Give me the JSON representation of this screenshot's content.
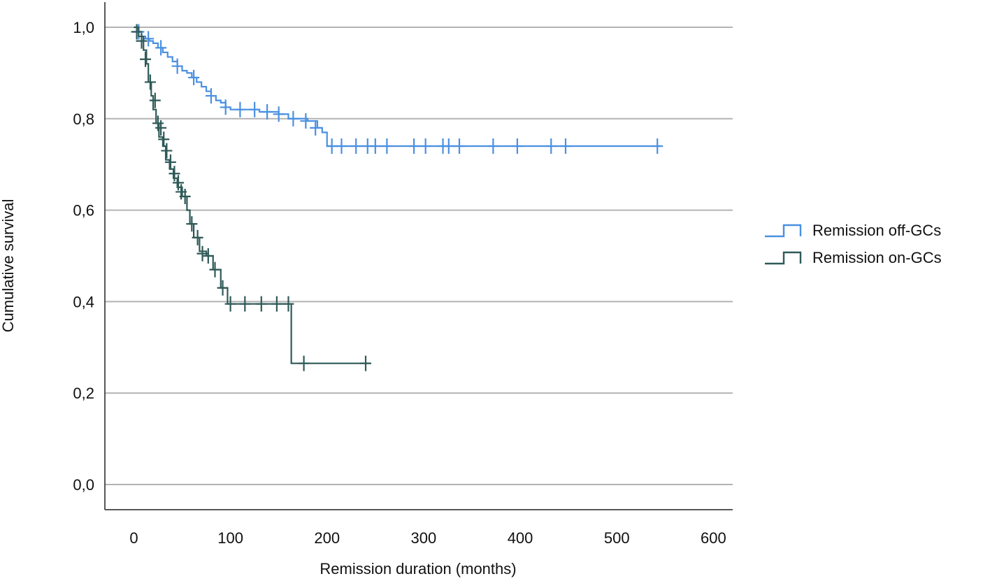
{
  "chart_data": {
    "type": "line",
    "subtype": "kaplan-meier",
    "xlabel": "Remission duration (months)",
    "ylabel": "Cumulative survival",
    "xlim": [
      -30,
      620
    ],
    "ylim": [
      -0.055,
      1.055
    ],
    "x_ticks": [
      0,
      100,
      200,
      300,
      400,
      500,
      600
    ],
    "x_tick_labels": [
      "0",
      "100",
      "200",
      "300",
      "400",
      "500",
      "600"
    ],
    "y_ticks": [
      0.0,
      0.2,
      0.4,
      0.6,
      0.8,
      1.0
    ],
    "y_tick_labels": [
      "0,0",
      "0,2",
      "0,4",
      "0,6",
      "0,8",
      "1,0"
    ],
    "grid": "horizontal",
    "legend_position": "right",
    "series": [
      {
        "name": "Remission off-GCs",
        "color": "#4a90e2",
        "steps": [
          [
            0,
            1.0
          ],
          [
            4,
            0.99
          ],
          [
            8,
            0.98
          ],
          [
            12,
            0.975
          ],
          [
            16,
            0.97
          ],
          [
            20,
            0.965
          ],
          [
            25,
            0.955
          ],
          [
            30,
            0.945
          ],
          [
            35,
            0.935
          ],
          [
            40,
            0.925
          ],
          [
            45,
            0.915
          ],
          [
            50,
            0.905
          ],
          [
            55,
            0.9
          ],
          [
            60,
            0.89
          ],
          [
            65,
            0.88
          ],
          [
            70,
            0.87
          ],
          [
            75,
            0.86
          ],
          [
            80,
            0.85
          ],
          [
            85,
            0.84
          ],
          [
            90,
            0.835
          ],
          [
            95,
            0.825
          ],
          [
            100,
            0.82
          ],
          [
            130,
            0.815
          ],
          [
            150,
            0.81
          ],
          [
            160,
            0.8
          ],
          [
            180,
            0.795
          ],
          [
            190,
            0.78
          ],
          [
            195,
            0.77
          ],
          [
            200,
            0.74
          ],
          [
            545,
            0.74
          ]
        ],
        "censored": [
          [
            5,
            0.99
          ],
          [
            15,
            0.975
          ],
          [
            28,
            0.955
          ],
          [
            45,
            0.915
          ],
          [
            62,
            0.89
          ],
          [
            80,
            0.85
          ],
          [
            95,
            0.825
          ],
          [
            110,
            0.82
          ],
          [
            125,
            0.82
          ],
          [
            138,
            0.815
          ],
          [
            150,
            0.81
          ],
          [
            165,
            0.8
          ],
          [
            178,
            0.795
          ],
          [
            188,
            0.78
          ],
          [
            205,
            0.74
          ],
          [
            215,
            0.74
          ],
          [
            230,
            0.74
          ],
          [
            242,
            0.74
          ],
          [
            250,
            0.74
          ],
          [
            262,
            0.74
          ],
          [
            290,
            0.74
          ],
          [
            302,
            0.74
          ],
          [
            320,
            0.74
          ],
          [
            326,
            0.74
          ],
          [
            337,
            0.74
          ],
          [
            372,
            0.74
          ],
          [
            397,
            0.74
          ],
          [
            432,
            0.74
          ],
          [
            447,
            0.74
          ],
          [
            542,
            0.74
          ]
        ]
      },
      {
        "name": "Remission on-GCs",
        "color": "#2e5a58",
        "steps": [
          [
            0,
            1.0
          ],
          [
            5,
            0.98
          ],
          [
            10,
            0.95
          ],
          [
            13,
            0.92
          ],
          [
            15,
            0.88
          ],
          [
            18,
            0.85
          ],
          [
            20,
            0.82
          ],
          [
            23,
            0.79
          ],
          [
            26,
            0.76
          ],
          [
            30,
            0.74
          ],
          [
            33,
            0.71
          ],
          [
            37,
            0.69
          ],
          [
            41,
            0.67
          ],
          [
            45,
            0.65
          ],
          [
            50,
            0.63
          ],
          [
            55,
            0.6
          ],
          [
            58,
            0.57
          ],
          [
            62,
            0.54
          ],
          [
            68,
            0.51
          ],
          [
            75,
            0.5
          ],
          [
            82,
            0.47
          ],
          [
            90,
            0.43
          ],
          [
            97,
            0.395
          ],
          [
            163,
            0.265
          ],
          [
            245,
            0.265
          ]
        ],
        "censored": [
          [
            3,
            0.99
          ],
          [
            8,
            0.97
          ],
          [
            12,
            0.93
          ],
          [
            17,
            0.88
          ],
          [
            22,
            0.84
          ],
          [
            25,
            0.79
          ],
          [
            28,
            0.78
          ],
          [
            31,
            0.755
          ],
          [
            34,
            0.73
          ],
          [
            38,
            0.705
          ],
          [
            42,
            0.68
          ],
          [
            46,
            0.66
          ],
          [
            49,
            0.64
          ],
          [
            53,
            0.63
          ],
          [
            60,
            0.57
          ],
          [
            66,
            0.54
          ],
          [
            71,
            0.505
          ],
          [
            77,
            0.5
          ],
          [
            84,
            0.47
          ],
          [
            92,
            0.43
          ],
          [
            100,
            0.395
          ],
          [
            115,
            0.395
          ],
          [
            132,
            0.395
          ],
          [
            148,
            0.395
          ],
          [
            160,
            0.395
          ],
          [
            176,
            0.265
          ],
          [
            240,
            0.265
          ]
        ]
      }
    ]
  }
}
